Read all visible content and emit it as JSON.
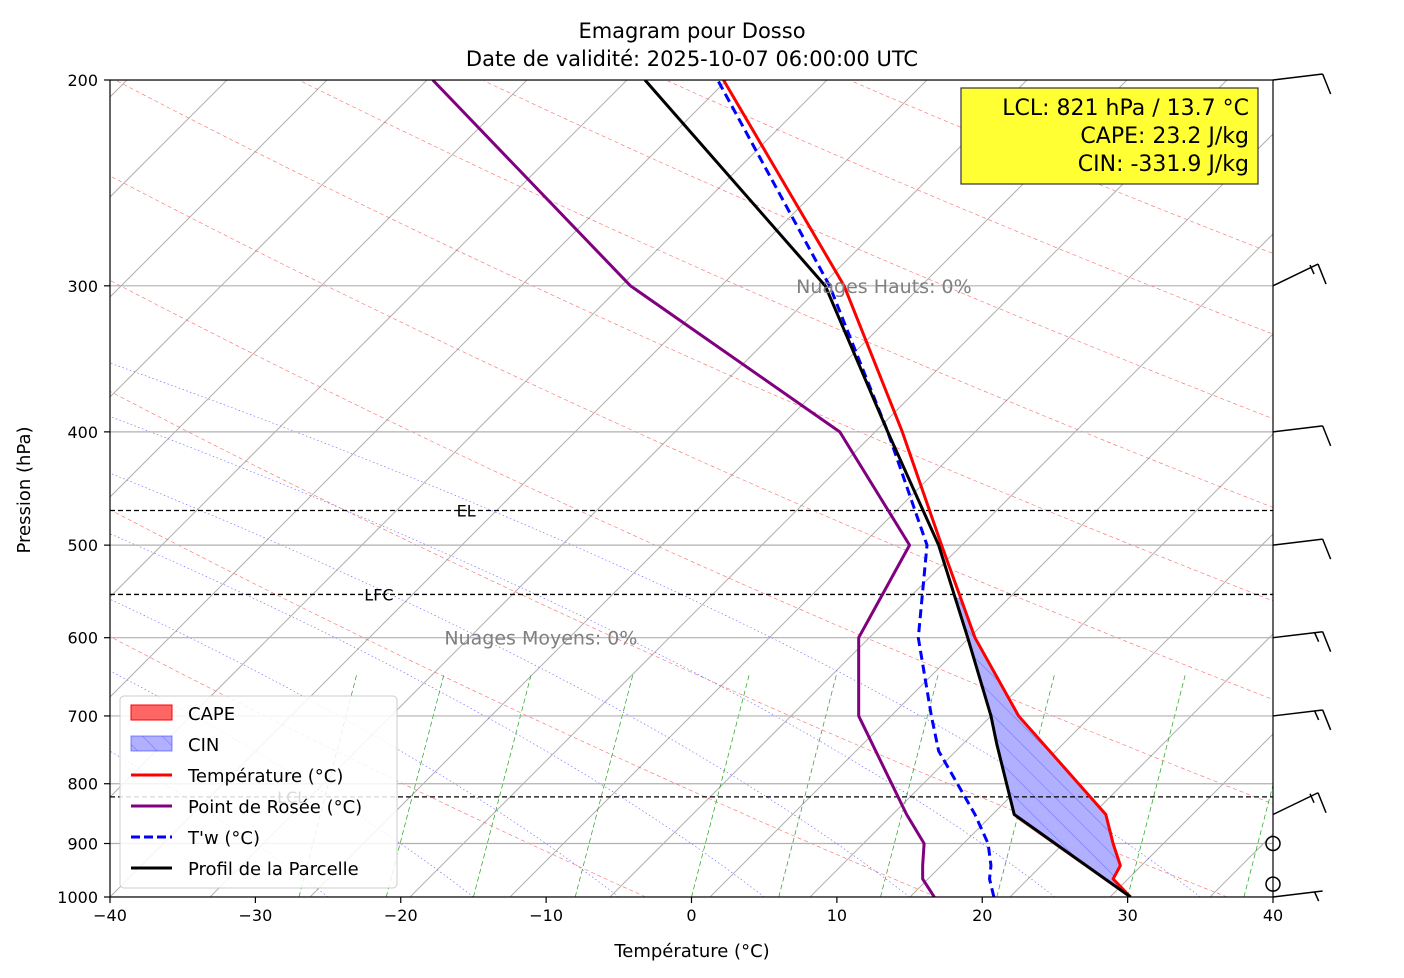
{
  "chart_data": {
    "type": "line",
    "title": "Emagram pour Dosso",
    "subtitle": "Date de validité: 2025-10-07 06:00:00 UTC",
    "xlabel": "Température (°C)",
    "ylabel": "Pression (hPa)",
    "xlim": [
      -40,
      40
    ],
    "ylim": [
      1000,
      200
    ],
    "yscale": "log",
    "x_ticks": [
      -40,
      -30,
      -20,
      -10,
      0,
      10,
      20,
      30,
      40
    ],
    "x_tick_labels": [
      "−40",
      "−30",
      "−20",
      "−10",
      "0",
      "10",
      "20",
      "30",
      "40"
    ],
    "y_ticks": [
      1000,
      900,
      800,
      700,
      600,
      500,
      400,
      300,
      200
    ],
    "y_tick_labels": [
      "1000",
      "900",
      "800",
      "700",
      "600",
      "500",
      "400",
      "300",
      "200"
    ],
    "grid": true,
    "legend_position": "bottom-left",
    "series": [
      {
        "name": "Température (°C)",
        "color": "#ff0000",
        "style": "solid",
        "points": [
          [
            30.2,
            1000
          ],
          [
            29.0,
            965
          ],
          [
            29.5,
            940
          ],
          [
            29.0,
            900
          ],
          [
            28.5,
            850
          ],
          [
            22.5,
            700
          ],
          [
            19.5,
            600
          ],
          [
            17.2,
            500
          ],
          [
            14.5,
            400
          ],
          [
            10.5,
            300
          ],
          [
            2.2,
            200
          ]
        ]
      },
      {
        "name": "Point de Rosée (°C)",
        "color": "#800080",
        "style": "solid",
        "points": [
          [
            16.7,
            1000
          ],
          [
            15.9,
            965
          ],
          [
            15.9,
            940
          ],
          [
            16.0,
            900
          ],
          [
            14.8,
            850
          ],
          [
            11.5,
            700
          ],
          [
            11.5,
            600
          ],
          [
            15.0,
            500
          ],
          [
            10.2,
            400
          ],
          [
            -4.2,
            300
          ],
          [
            -17.8,
            200
          ]
        ]
      },
      {
        "name": "T'w (°C)",
        "color": "#0000ff",
        "style": "dashed",
        "points": [
          [
            20.8,
            1000
          ],
          [
            20.5,
            965
          ],
          [
            20.6,
            940
          ],
          [
            20.4,
            900
          ],
          [
            19.5,
            850
          ],
          [
            17.0,
            750
          ],
          [
            16.5,
            700
          ],
          [
            15.6,
            600
          ],
          [
            16.2,
            500
          ],
          [
            13.5,
            400
          ],
          [
            9.5,
            300
          ],
          [
            1.8,
            200
          ]
        ]
      },
      {
        "name": "Profil de la Parcelle",
        "color": "#000000",
        "style": "solid",
        "points": [
          [
            30.2,
            1000
          ],
          [
            22.2,
            850
          ],
          [
            21.0,
            740
          ],
          [
            20.6,
            700
          ],
          [
            19.0,
            600
          ],
          [
            17.0,
            500
          ],
          [
            13.5,
            400
          ],
          [
            9.2,
            300
          ],
          [
            -3.2,
            200
          ]
        ]
      }
    ],
    "fills": [
      {
        "name": "CAPE",
        "color": "#ff0000",
        "opacity": 0.6
      },
      {
        "name": "CIN",
        "color": "#0000ff",
        "opacity": 0.3,
        "hatch": true
      }
    ],
    "levels": [
      {
        "label": "EL",
        "pressure": 467,
        "label_x": -15.5
      },
      {
        "label": "LFC",
        "pressure": 551,
        "label_x": -21.5
      },
      {
        "label": "LCL",
        "pressure": 821,
        "label_x": -27.5
      }
    ],
    "cloud_annotations": [
      {
        "text": "Nuages Hauts: 0%",
        "pressure": 300,
        "x": 7.2
      },
      {
        "text": "Nuages Moyens: 0%",
        "pressure": 600,
        "x": -17.0
      }
    ],
    "info_box": {
      "lines": [
        "LCL: 821 hPa / 13.7 °C",
        "CAPE: 23.2 J/kg",
        "CIN: -331.9 J/kg"
      ],
      "background": "#ffff33",
      "position": "top-right"
    },
    "wind_barbs": [
      {
        "pressure": 200,
        "barbs": 1
      },
      {
        "pressure": 300,
        "barbs": 1.5
      },
      {
        "pressure": 400,
        "barbs": 1
      },
      {
        "pressure": 500,
        "barbs": 1
      },
      {
        "pressure": 600,
        "barbs": 1.5
      },
      {
        "pressure": 700,
        "barbs": 1.5
      },
      {
        "pressure": 850,
        "barbs": 1.5
      },
      {
        "pressure": 900,
        "barbs": 0
      },
      {
        "pressure": 975,
        "barbs": 0
      },
      {
        "pressure": 1000,
        "barbs": 0.5
      }
    ]
  }
}
